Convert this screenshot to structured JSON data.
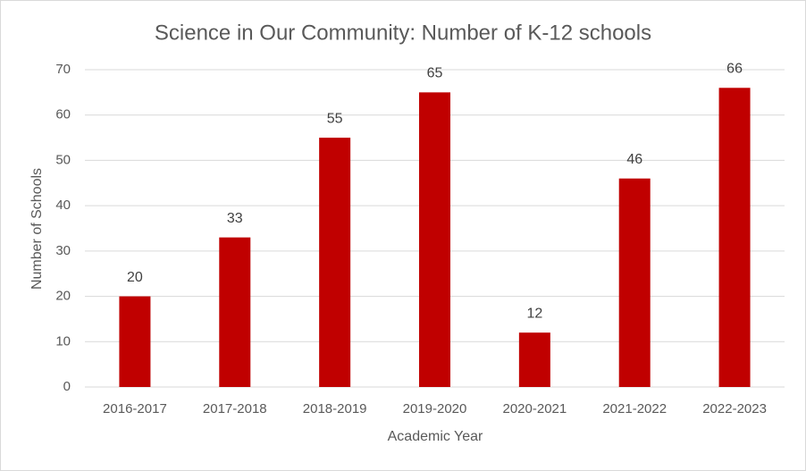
{
  "chart_data": {
    "type": "bar",
    "title": "Science in Our Community: Number of K-12 schools",
    "x_label": "Academic Year",
    "y_label": "Number of Schools",
    "categories": [
      "2016-2017",
      "2017-2018",
      "2018-2019",
      "2019-2020",
      "2020-2021",
      "2021-2022",
      "2022-2023"
    ],
    "values": [
      20,
      33,
      55,
      65,
      12,
      46,
      66
    ],
    "color": "#c00000",
    "ylim": [
      0,
      70
    ],
    "yticks": [
      0,
      10,
      20,
      30,
      40,
      50,
      60,
      70
    ],
    "grid": true,
    "data_labels": true
  }
}
